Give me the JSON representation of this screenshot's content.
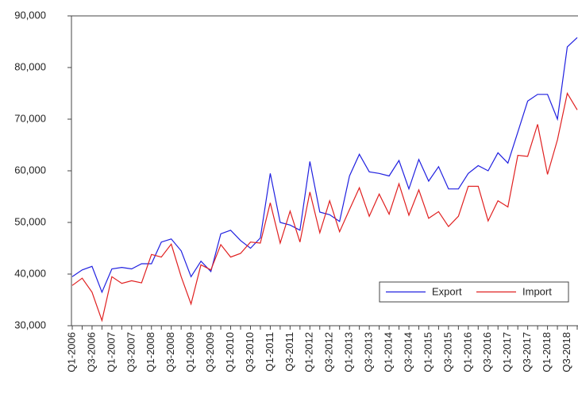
{
  "chart_data": {
    "type": "line",
    "categories": [
      "Q1-2006",
      null,
      "Q3-2006",
      null,
      "Q1-2007",
      null,
      "Q3-2007",
      null,
      "Q1-2008",
      null,
      "Q3-2008",
      null,
      "Q1-2009",
      null,
      "Q3-2009",
      null,
      "Q1-2010",
      null,
      "Q3-2010",
      null,
      "Q1-2011",
      null,
      "Q3-2011",
      null,
      "Q1-2012",
      null,
      "Q3-2012",
      null,
      "Q1-2013",
      null,
      "Q3-2013",
      null,
      "Q1-2014",
      null,
      "Q3-2014",
      null,
      "Q1-2015",
      null,
      "Q3-2015",
      null,
      "Q1-2016",
      null,
      "Q3-2016",
      null,
      "Q1-2017",
      null,
      "Q3-2017",
      null,
      "Q1-2018",
      null,
      "Q3-2018",
      null
    ],
    "series": [
      {
        "name": "Export",
        "color": "#2020e0",
        "values": [
          39500,
          40800,
          41500,
          36500,
          41000,
          41300,
          41000,
          42000,
          42000,
          46200,
          46800,
          44500,
          39500,
          42500,
          40500,
          47800,
          48500,
          46500,
          45000,
          47000,
          59500,
          50000,
          49500,
          48500,
          61800,
          52000,
          51500,
          50200,
          59000,
          63200,
          59800,
          59500,
          59000,
          62000,
          56500,
          62200,
          58000,
          60800,
          56500,
          56500,
          59500,
          61000,
          60000,
          63500,
          61500,
          67500,
          73500,
          74800,
          74800,
          70000,
          84000,
          85800
        ]
      },
      {
        "name": "Import",
        "color": "#e02020",
        "values": [
          37800,
          39200,
          36500,
          31000,
          39500,
          38200,
          38700,
          38300,
          43800,
          43300,
          45800,
          39500,
          34200,
          41800,
          40800,
          45700,
          43300,
          44000,
          46200,
          46000,
          53800,
          46000,
          52200,
          46200,
          55900,
          48000,
          54200,
          48200,
          52500,
          56700,
          51200,
          55500,
          51600,
          57500,
          51400,
          56300,
          50800,
          52100,
          49200,
          51200,
          57000,
          57000,
          50300,
          54200,
          53000,
          63000,
          62800,
          69000,
          59300,
          66000,
          75000,
          71800
        ]
      }
    ],
    "ylim": [
      30000,
      90000
    ],
    "yticks": [
      {
        "value": 30000,
        "label": "30,000"
      },
      {
        "value": 40000,
        "label": "40,000"
      },
      {
        "value": 50000,
        "label": "50,000"
      },
      {
        "value": 60000,
        "label": "60,000"
      },
      {
        "value": 70000,
        "label": "70,000"
      },
      {
        "value": 80000,
        "label": "80,000"
      },
      {
        "value": 90000,
        "label": "90,000"
      }
    ],
    "legend": "lower right"
  }
}
